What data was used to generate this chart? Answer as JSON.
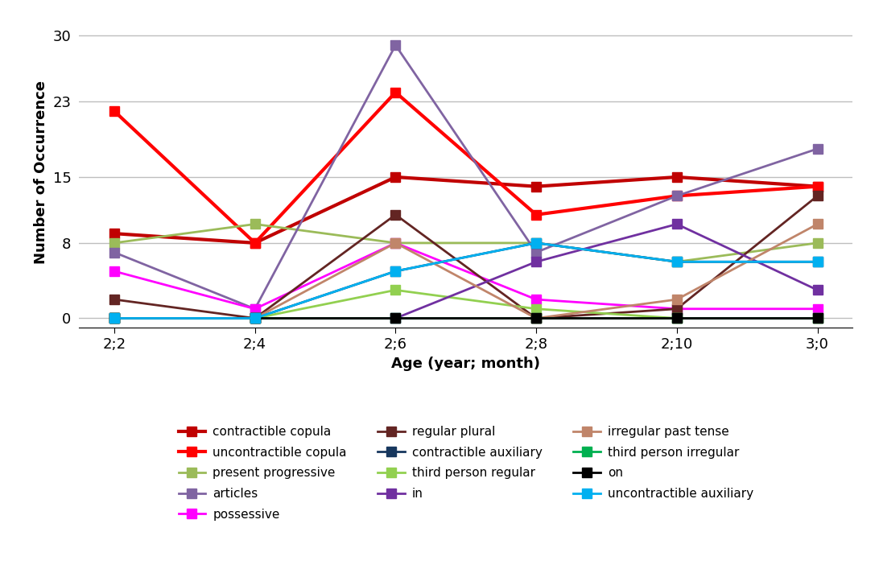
{
  "x_labels": [
    "2;2",
    "2;4",
    "2;6",
    "2;8",
    "2;10",
    "3;0"
  ],
  "x_values": [
    0,
    1,
    2,
    3,
    4,
    5
  ],
  "series": [
    {
      "name": "contractible copula",
      "values": [
        9,
        8,
        15,
        14,
        15,
        14
      ],
      "color": "#C00000",
      "linewidth": 3.0
    },
    {
      "name": "uncontractible copula",
      "values": [
        22,
        8,
        24,
        11,
        13,
        14
      ],
      "color": "#FF0000",
      "linewidth": 3.0
    },
    {
      "name": "present progressive",
      "values": [
        8,
        10,
        8,
        8,
        6,
        8
      ],
      "color": "#9BBB59",
      "linewidth": 2.0
    },
    {
      "name": "articles",
      "values": [
        7,
        1,
        29,
        7,
        13,
        18
      ],
      "color": "#8064A2",
      "linewidth": 2.0
    },
    {
      "name": "possessive",
      "values": [
        5,
        1,
        8,
        2,
        1,
        1
      ],
      "color": "#FF00FF",
      "linewidth": 2.0
    },
    {
      "name": "regular plural",
      "values": [
        2,
        0,
        11,
        0,
        1,
        13
      ],
      "color": "#632523",
      "linewidth": 2.0
    },
    {
      "name": "contractible auxiliary",
      "values": [
        0,
        0,
        5,
        8,
        6,
        6
      ],
      "color": "#17375E",
      "linewidth": 2.0
    },
    {
      "name": "third person regular",
      "values": [
        0,
        0,
        3,
        1,
        0,
        0
      ],
      "color": "#92D050",
      "linewidth": 2.0
    },
    {
      "name": "in",
      "values": [
        0,
        0,
        0,
        6,
        10,
        3
      ],
      "color": "#7030A0",
      "linewidth": 2.0
    },
    {
      "name": "irregular past tense",
      "values": [
        0,
        0,
        8,
        0,
        2,
        10
      ],
      "color": "#C0856A",
      "linewidth": 2.0
    },
    {
      "name": "third person irregular",
      "values": [
        0,
        0,
        0,
        0,
        0,
        0
      ],
      "color": "#00B050",
      "linewidth": 2.0
    },
    {
      "name": "on",
      "values": [
        0,
        0,
        0,
        0,
        0,
        0
      ],
      "color": "#000000",
      "linewidth": 2.0
    },
    {
      "name": "uncontractible auxiliary",
      "values": [
        0,
        0,
        5,
        8,
        6,
        6
      ],
      "color": "#00B0F0",
      "linewidth": 2.0
    }
  ],
  "legend_layout": [
    [
      "contractible copula",
      "uncontractible copula",
      "present progressive"
    ],
    [
      "articles",
      "possessive",
      "regular plural"
    ],
    [
      "contractible auxiliary",
      "third person regular",
      "in"
    ],
    [
      "irregular past tense",
      "third person irregular",
      "on"
    ],
    [
      "uncontractible auxiliary",
      null,
      null
    ]
  ],
  "ylabel": "Number of Occurrence",
  "xlabel": "Age (year; month)",
  "ylim": [
    -1,
    32
  ],
  "yticks": [
    0,
    8,
    15,
    23,
    30
  ],
  "background_color": "#FFFFFF",
  "grid_color": "#BEBEBE",
  "figsize": [
    10.92,
    7.02
  ],
  "dpi": 100
}
